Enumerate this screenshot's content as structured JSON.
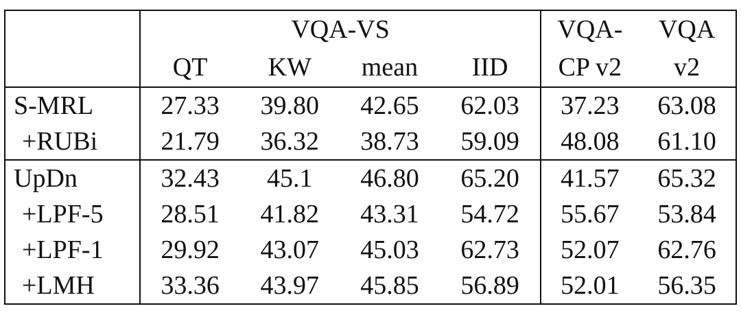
{
  "header": {
    "group_vqa_vs": "VQA-VS",
    "group_vqacp_line1": "VQA-",
    "group_vqacp_line2": "CP v2",
    "group_vqa_line1": "VQA",
    "group_vqa_line2": "v2",
    "col_qt": "QT",
    "col_kw": "KW",
    "col_mean": "mean",
    "col_iid": "IID"
  },
  "rows": [
    {
      "label": "S-MRL",
      "qt": "27.33",
      "kw": "39.80",
      "mean": "42.65",
      "iid": "62.03",
      "vqacp": "37.23",
      "vqa": "63.08"
    },
    {
      "label": "+RUBi",
      "qt": "21.79",
      "kw": "36.32",
      "mean": "38.73",
      "iid": "59.09",
      "vqacp": "48.08",
      "vqa": "61.10"
    },
    {
      "label": "UpDn",
      "qt": "32.43",
      "kw": "45.1",
      "mean": "46.80",
      "iid": "65.20",
      "vqacp": "41.57",
      "vqa": "65.32"
    },
    {
      "label": "+LPF-5",
      "qt": "28.51",
      "kw": "41.82",
      "mean": "43.31",
      "iid": "54.72",
      "vqacp": "55.67",
      "vqa": "53.84"
    },
    {
      "label": "+LPF-1",
      "qt": "29.92",
      "kw": "43.07",
      "mean": "45.03",
      "iid": "62.73",
      "vqacp": "52.07",
      "vqa": "62.76"
    },
    {
      "label": "+LMH",
      "qt": "33.36",
      "kw": "43.97",
      "mean": "45.85",
      "iid": "56.89",
      "vqacp": "52.01",
      "vqa": "56.35"
    }
  ]
}
